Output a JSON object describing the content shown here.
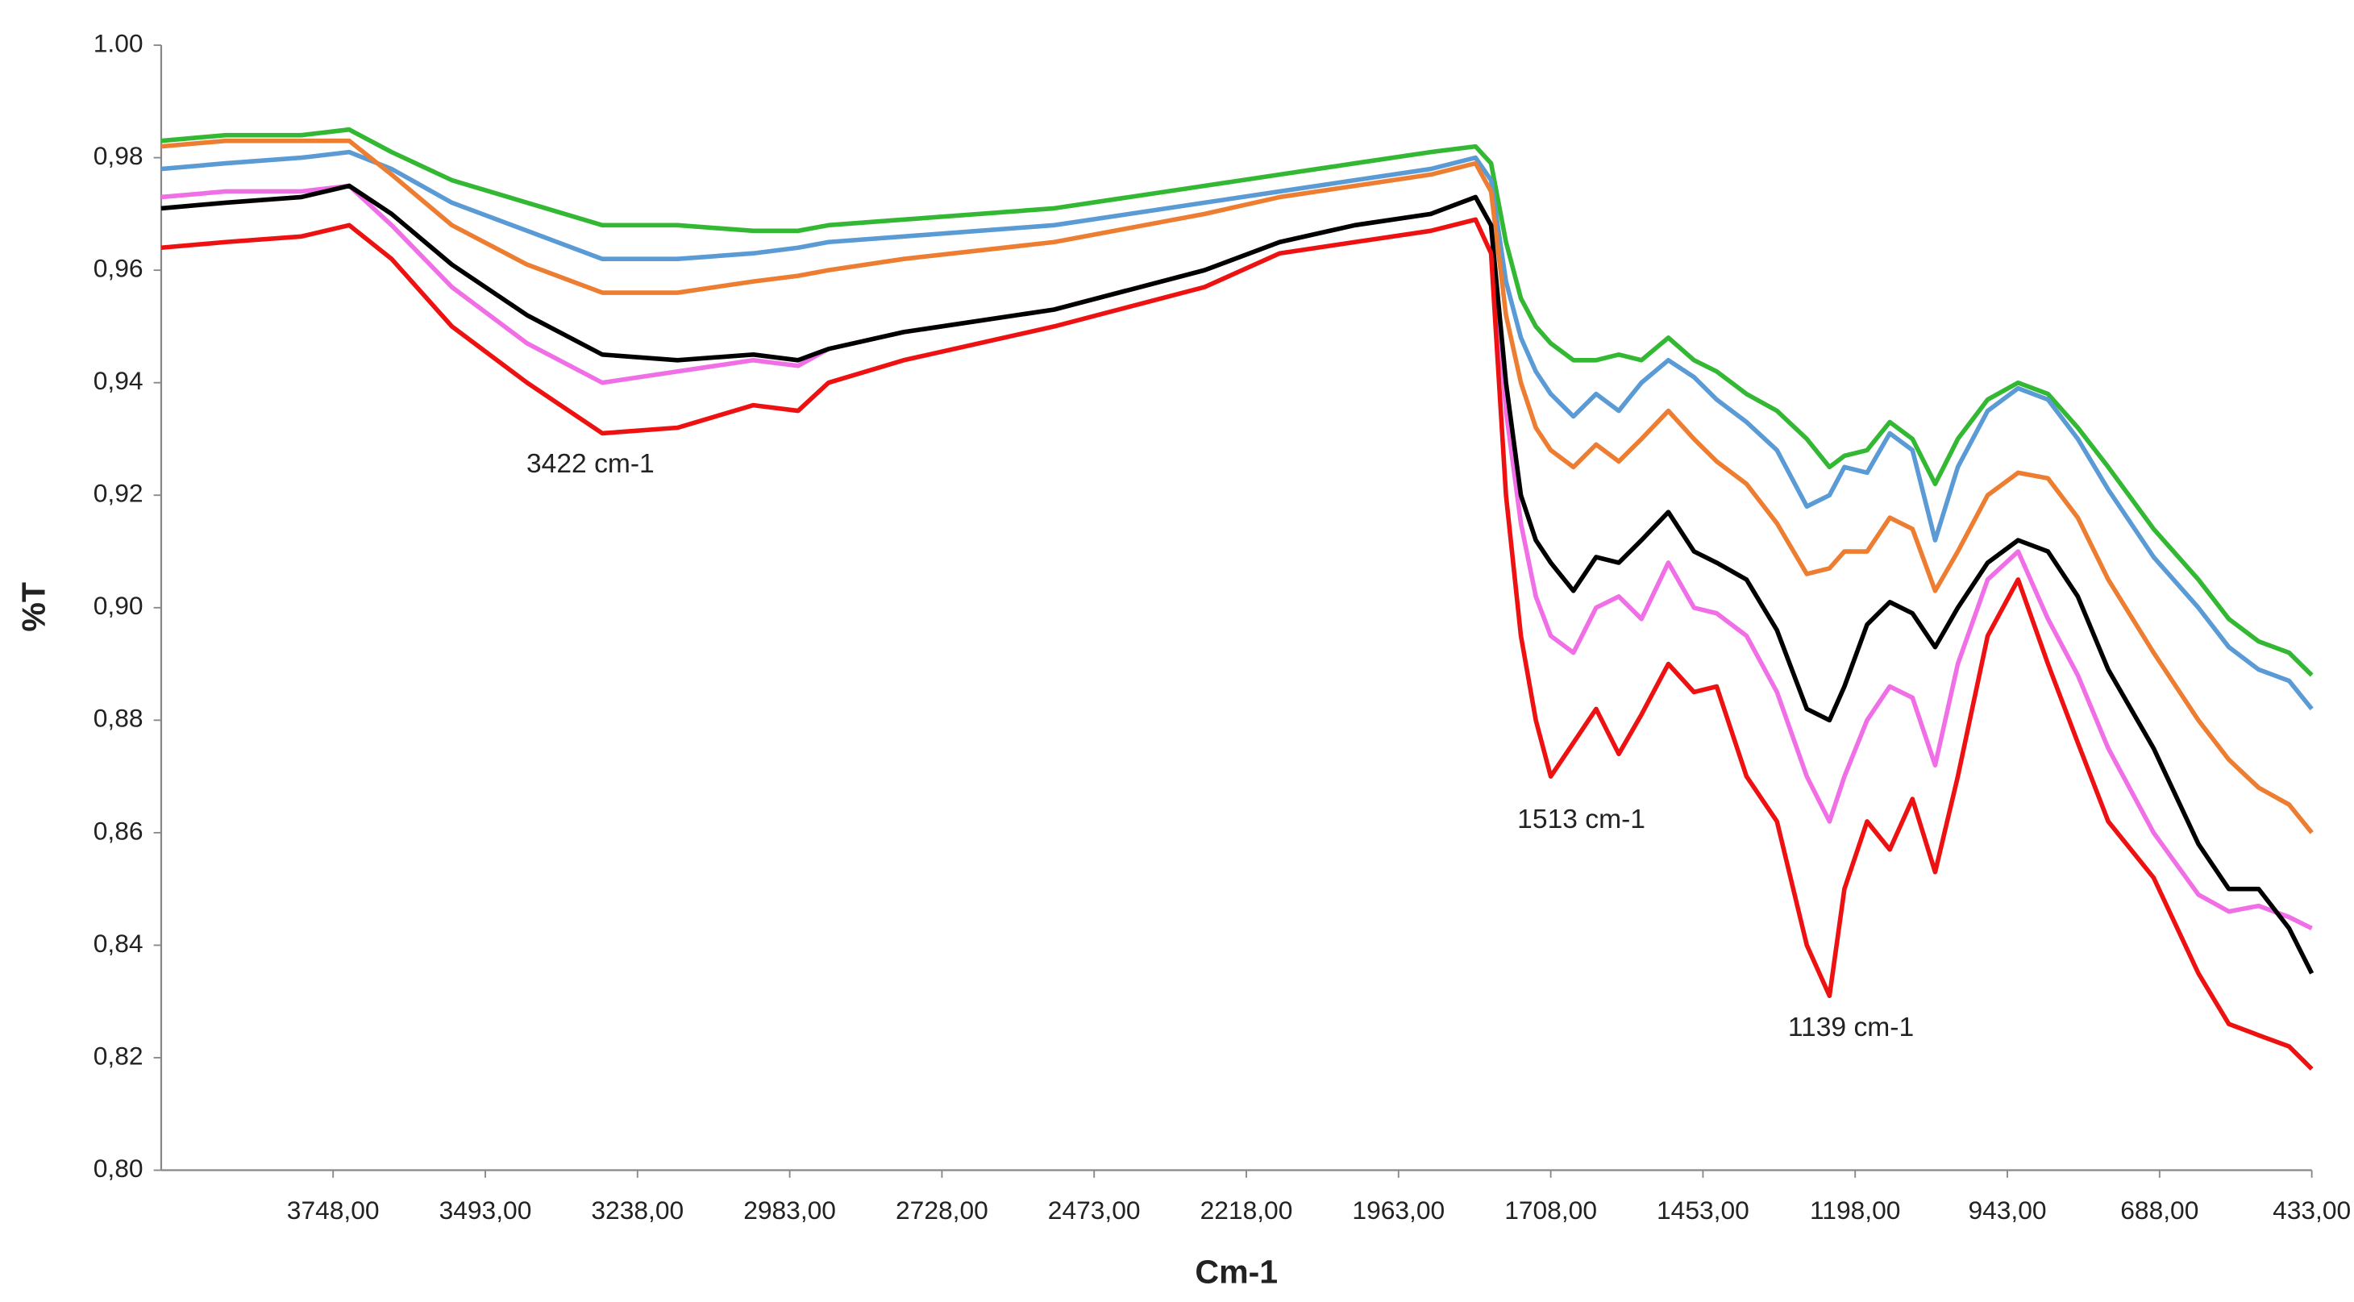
{
  "chart_data": {
    "type": "line",
    "x_label": "Cm-1",
    "y_label": "%T",
    "xlim": [
      4036,
      433
    ],
    "ylim": [
      0.8,
      1.0
    ],
    "xticks": [
      {
        "value": 3748,
        "label": "3748,00"
      },
      {
        "value": 3493,
        "label": "3493,00"
      },
      {
        "value": 3238,
        "label": "3238,00"
      },
      {
        "value": 2983,
        "label": "2983,00"
      },
      {
        "value": 2728,
        "label": "2728,00"
      },
      {
        "value": 2473,
        "label": "2473,00"
      },
      {
        "value": 2218,
        "label": "2218,00"
      },
      {
        "value": 1963,
        "label": "1963,00"
      },
      {
        "value": 1708,
        "label": "1708,00"
      },
      {
        "value": 1453,
        "label": "1453,00"
      },
      {
        "value": 1198,
        "label": "1198,00"
      },
      {
        "value": 943,
        "label": "943,00"
      },
      {
        "value": 688,
        "label": "688,00"
      },
      {
        "value": 433,
        "label": "433,00"
      }
    ],
    "yticks": [
      {
        "value": 0.8,
        "label": "0,80"
      },
      {
        "value": 0.82,
        "label": "0,82"
      },
      {
        "value": 0.84,
        "label": "0,84"
      },
      {
        "value": 0.86,
        "label": "0,86"
      },
      {
        "value": 0.88,
        "label": "0,88"
      },
      {
        "value": 0.9,
        "label": "0,90"
      },
      {
        "value": 0.92,
        "label": "0,92"
      },
      {
        "value": 0.94,
        "label": "0,94"
      },
      {
        "value": 0.96,
        "label": "0,96"
      },
      {
        "value": 0.98,
        "label": "0,98"
      },
      {
        "value": 1.0,
        "label": "1.00"
      }
    ],
    "grid": false,
    "annotations": [
      "3422 cm-1",
      "1513 cm-1",
      "1139 cm-1"
    ],
    "x": [
      4036,
      3928,
      3801,
      3721,
      3650,
      3549,
      3423,
      3297,
      3171,
      3044,
      2969,
      2918,
      2792,
      2540,
      2288,
      2162,
      2036,
      1909,
      1834,
      1808,
      1783,
      1758,
      1733,
      1708,
      1670,
      1632,
      1594,
      1556,
      1511,
      1468,
      1430,
      1380,
      1329,
      1279,
      1241,
      1216,
      1178,
      1140,
      1102,
      1064,
      1026,
      976,
      925,
      875,
      825,
      774,
      698,
      623,
      572,
      522,
      471,
      433
    ],
    "series": [
      {
        "color": "#33b833",
        "values": [
          0.983,
          0.984,
          0.984,
          0.985,
          0.981,
          0.976,
          0.972,
          0.968,
          0.968,
          0.967,
          0.967,
          0.968,
          0.969,
          0.971,
          0.975,
          0.977,
          0.979,
          0.981,
          0.982,
          0.979,
          0.965,
          0.955,
          0.95,
          0.947,
          0.944,
          0.944,
          0.945,
          0.944,
          0.948,
          0.944,
          0.942,
          0.938,
          0.935,
          0.93,
          0.925,
          0.927,
          0.928,
          0.933,
          0.93,
          0.922,
          0.93,
          0.937,
          0.94,
          0.938,
          0.932,
          0.925,
          0.914,
          0.905,
          0.898,
          0.894,
          0.892,
          0.888
        ]
      },
      {
        "color": "#5b9bd5",
        "values": [
          0.978,
          0.979,
          0.98,
          0.981,
          0.978,
          0.972,
          0.967,
          0.962,
          0.962,
          0.963,
          0.964,
          0.965,
          0.966,
          0.968,
          0.972,
          0.974,
          0.976,
          0.978,
          0.98,
          0.976,
          0.958,
          0.948,
          0.942,
          0.938,
          0.934,
          0.938,
          0.935,
          0.94,
          0.944,
          0.941,
          0.937,
          0.933,
          0.928,
          0.918,
          0.92,
          0.925,
          0.924,
          0.931,
          0.928,
          0.912,
          0.925,
          0.935,
          0.939,
          0.937,
          0.93,
          0.921,
          0.909,
          0.9,
          0.893,
          0.889,
          0.887,
          0.882
        ]
      },
      {
        "color": "#ed7d31",
        "values": [
          0.982,
          0.983,
          0.983,
          0.983,
          0.977,
          0.968,
          0.961,
          0.956,
          0.956,
          0.958,
          0.959,
          0.96,
          0.962,
          0.965,
          0.97,
          0.973,
          0.975,
          0.977,
          0.979,
          0.974,
          0.952,
          0.94,
          0.932,
          0.928,
          0.925,
          0.929,
          0.926,
          0.93,
          0.935,
          0.93,
          0.926,
          0.922,
          0.915,
          0.906,
          0.907,
          0.91,
          0.91,
          0.916,
          0.914,
          0.903,
          0.91,
          0.92,
          0.924,
          0.923,
          0.916,
          0.905,
          0.892,
          0.88,
          0.873,
          0.868,
          0.865,
          0.86
        ]
      },
      {
        "color": "#f06ee6",
        "values": [
          0.973,
          0.974,
          0.974,
          0.975,
          0.968,
          0.957,
          0.947,
          0.94,
          0.942,
          0.944,
          0.943,
          0.946,
          0.949,
          0.953,
          0.96,
          0.965,
          0.968,
          0.97,
          0.973,
          0.968,
          0.935,
          0.915,
          0.902,
          0.895,
          0.892,
          0.9,
          0.902,
          0.898,
          0.908,
          0.9,
          0.899,
          0.895,
          0.885,
          0.87,
          0.862,
          0.87,
          0.88,
          0.886,
          0.884,
          0.872,
          0.89,
          0.905,
          0.91,
          0.898,
          0.888,
          0.875,
          0.86,
          0.849,
          0.846,
          0.847,
          0.845,
          0.843
        ]
      },
      {
        "color": "#000000",
        "values": [
          0.971,
          0.972,
          0.973,
          0.975,
          0.97,
          0.961,
          0.952,
          0.945,
          0.944,
          0.945,
          0.944,
          0.946,
          0.949,
          0.953,
          0.96,
          0.965,
          0.968,
          0.97,
          0.973,
          0.968,
          0.94,
          0.92,
          0.912,
          0.908,
          0.903,
          0.909,
          0.908,
          0.912,
          0.917,
          0.91,
          0.908,
          0.905,
          0.896,
          0.882,
          0.88,
          0.886,
          0.897,
          0.901,
          0.899,
          0.893,
          0.9,
          0.908,
          0.912,
          0.91,
          0.902,
          0.889,
          0.875,
          0.858,
          0.85,
          0.85,
          0.843,
          0.835
        ]
      },
      {
        "color": "#ee1111",
        "values": [
          0.964,
          0.965,
          0.966,
          0.968,
          0.962,
          0.95,
          0.94,
          0.931,
          0.932,
          0.936,
          0.935,
          0.94,
          0.944,
          0.95,
          0.957,
          0.963,
          0.965,
          0.967,
          0.969,
          0.963,
          0.92,
          0.895,
          0.88,
          0.87,
          0.876,
          0.882,
          0.874,
          0.881,
          0.89,
          0.885,
          0.886,
          0.87,
          0.862,
          0.84,
          0.831,
          0.85,
          0.862,
          0.857,
          0.866,
          0.853,
          0.87,
          0.895,
          0.905,
          0.89,
          0.876,
          0.862,
          0.852,
          0.835,
          0.826,
          0.824,
          0.822,
          0.818
        ]
      }
    ]
  }
}
